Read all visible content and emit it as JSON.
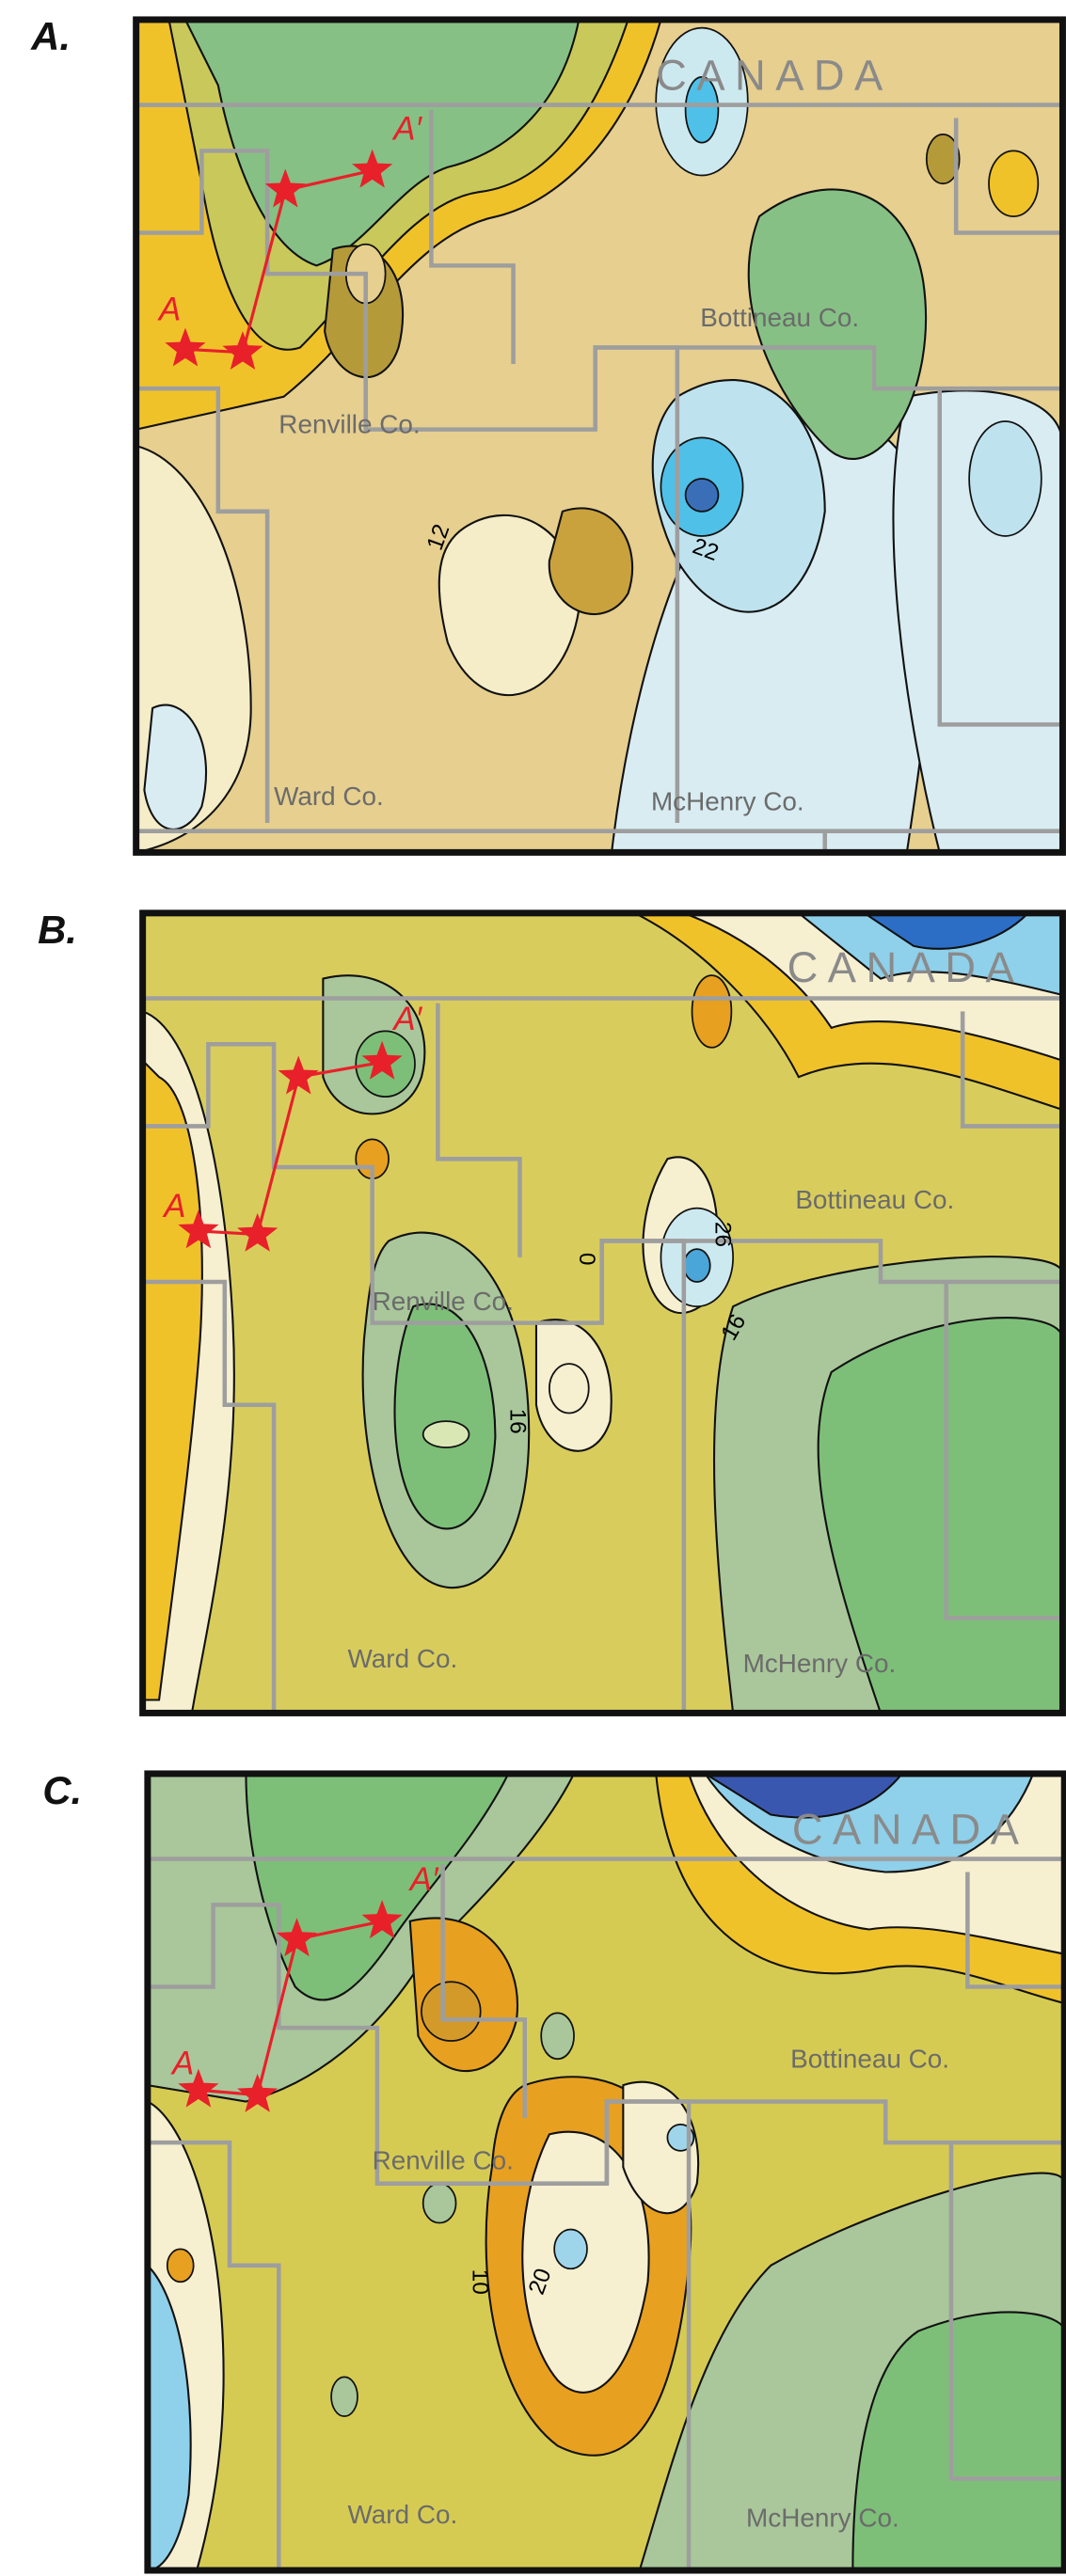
{
  "panels": [
    {
      "label": "A.",
      "country": "CANADA",
      "counties": [
        "Bottineau Co.",
        "Renville Co.",
        "Ward Co.",
        "McHenry Co."
      ],
      "points": [
        "A",
        "A′"
      ],
      "contour_labels": [
        12,
        22
      ]
    },
    {
      "label": "B.",
      "country": "CANADA",
      "counties": [
        "Bottineau Co.",
        "Renville Co.",
        "Ward Co.",
        "McHenry Co."
      ],
      "points": [
        "A",
        "A′"
      ],
      "contour_labels": [
        0,
        26,
        16,
        16
      ]
    },
    {
      "label": "C.",
      "country": "CANADA",
      "counties": [
        "Bottineau Co.",
        "Renville Co.",
        "Ward Co.",
        "McHenry Co."
      ],
      "points": [
        "A",
        "A′"
      ],
      "contour_labels": [
        10,
        20
      ]
    }
  ]
}
